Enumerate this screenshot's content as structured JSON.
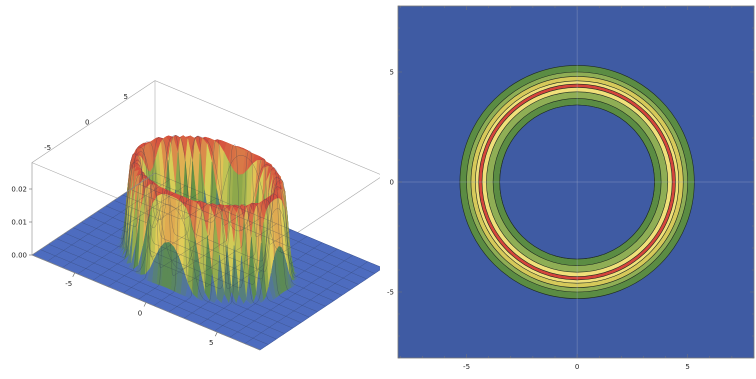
{
  "chart_data": [
    {
      "type": "surface",
      "function": "radial ring centered on the origin, peak about 0.027 at radius about 4.5",
      "x_ticks": [
        -5,
        0,
        5
      ],
      "y_ticks": [
        -5,
        0,
        5
      ],
      "z_ticks": [
        "0.00",
        "0.01",
        "0.02"
      ],
      "xlim": [
        -8,
        8
      ],
      "ylim": [
        -8,
        8
      ],
      "zlim": [
        0,
        0.028
      ],
      "colors": {
        "low": "#3f5ba3",
        "mid_low": "#5e8f43",
        "mid": "#e3d45a",
        "high": "#d4453c",
        "base": "#4d6cbf"
      },
      "mesh": true,
      "box": true
    },
    {
      "type": "contour",
      "x_ticks": [
        -5,
        0,
        5
      ],
      "y_ticks": [
        -5,
        0,
        5
      ],
      "xlim": [
        -8.1,
        8
      ],
      "ylim": [
        -8,
        8
      ],
      "center": [
        0,
        0
      ],
      "ring_radii": [
        5.3,
        5.0,
        4.8,
        4.6,
        4.45,
        4.3,
        4.1,
        3.8,
        3.5
      ],
      "band_colors": [
        "#5b8c43",
        "#8fae55",
        "#d6c95a",
        "#f0e07a",
        "#d4453c",
        "#f0e07a",
        "#8fae55",
        "#5b8c43"
      ],
      "background": "#3f5ba3",
      "gridlines": "at x=0 and y=0"
    }
  ]
}
